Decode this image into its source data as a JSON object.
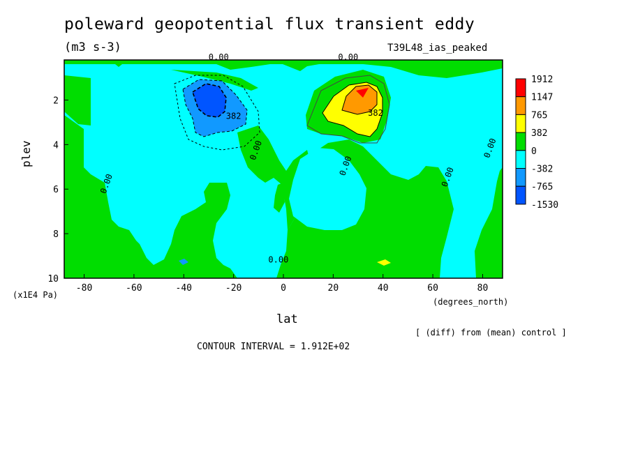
{
  "header": {
    "title": "poleward geopotential flux transient eddy",
    "units": "(m3 s-3)",
    "experiment": "T39L48_ias_peaked"
  },
  "footer": {
    "comparison": "[ (diff) from (mean) control ]",
    "contour_interval": "CONTOUR INTERVAL = 1.912E+02"
  },
  "chart_data": {
    "type": "heatmap",
    "title": "poleward geopotential flux transient eddy",
    "subtitle": "(m3 s-3)",
    "xlabel": "lat",
    "xunit": "(degrees_north)",
    "ylabel": "plev",
    "yunit": "(x1E4 Pa)",
    "xlim": [
      -88,
      88
    ],
    "ylim": [
      0.2,
      10
    ],
    "y_inverted": true,
    "x_ticks": [
      -80,
      -60,
      -40,
      -20,
      0,
      20,
      40,
      60,
      80
    ],
    "y_ticks": [
      2,
      4,
      6,
      8,
      10
    ],
    "colorbar": {
      "labels": [
        "1912",
        "1147",
        "765",
        "382",
        "0",
        "-382",
        "-765",
        "-1530"
      ],
      "colors": [
        "#ff0000",
        "#ff9900",
        "#ffff00",
        "#00dd00",
        "#00ffff",
        "#1199ff",
        "#0055ff"
      ]
    },
    "contour_labels": [
      {
        "text": "0.00",
        "x": -26,
        "y": 0.2
      },
      {
        "text": "0.00",
        "x": 26,
        "y": 0.2
      },
      {
        "text": "382",
        "x": -20,
        "y": 2.85
      },
      {
        "text": "382",
        "x": 37,
        "y": 2.7
      },
      {
        "text": "0.00",
        "x": -10,
        "y": 4.3
      },
      {
        "text": "0.00",
        "x": 26,
        "y": 5.0
      },
      {
        "text": "0.00",
        "x": -70,
        "y": 5.8
      },
      {
        "text": "0.00",
        "x": 67,
        "y": 5.5
      },
      {
        "text": "0.00",
        "x": 84,
        "y": 4.2
      },
      {
        "text": "0.00",
        "x": -2,
        "y": 9.3
      }
    ],
    "features": [
      {
        "kind": "min",
        "x": -30,
        "y": 2,
        "value": -1530
      },
      {
        "kind": "max",
        "x": 31,
        "y": 1.4,
        "value": 1912
      }
    ],
    "grid": false
  }
}
